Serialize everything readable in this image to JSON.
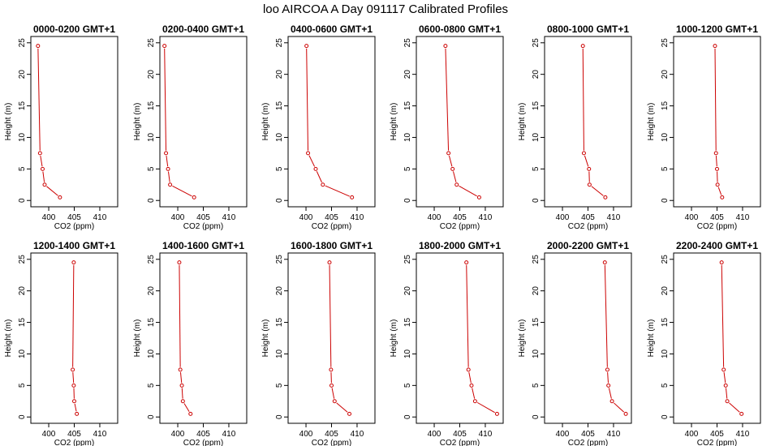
{
  "title": "loo AIRCOA A  Day 091117  Calibrated Profiles",
  "chart_data": {
    "type": "line",
    "xlabel": "CO2 (ppm)",
    "ylabel": "Height (m)",
    "xlim": [
      396.5,
      413.5
    ],
    "ylim": [
      -1,
      26
    ],
    "xticks": [
      400,
      405,
      410
    ],
    "yticks": [
      0,
      5,
      10,
      15,
      20,
      25
    ],
    "line_color": "#cc0000",
    "heights": [
      0.5,
      2.5,
      5,
      7.5,
      24.5
    ],
    "panels": [
      {
        "title": "0000-0200 GMT+1",
        "x": [
          402.2,
          399.2,
          398.8,
          398.3,
          397.9
        ]
      },
      {
        "title": "0200-0400 GMT+1",
        "x": [
          403.2,
          398.5,
          398.1,
          397.7,
          397.4
        ]
      },
      {
        "title": "0400-0600 GMT+1",
        "x": [
          409.0,
          403.3,
          401.9,
          400.4,
          400.1
        ]
      },
      {
        "title": "0600-0800 GMT+1",
        "x": [
          408.8,
          404.4,
          403.6,
          402.8,
          402.2
        ]
      },
      {
        "title": "0800-1000 GMT+1",
        "x": [
          408.4,
          405.3,
          405.2,
          404.2,
          404.0
        ]
      },
      {
        "title": "1000-1200 GMT+1",
        "x": [
          406.0,
          405.1,
          405.0,
          404.8,
          404.6
        ]
      },
      {
        "title": "1200-1400 GMT+1",
        "x": [
          405.5,
          405.0,
          404.9,
          404.7,
          404.9
        ]
      },
      {
        "title": "1400-1600 GMT+1",
        "x": [
          402.5,
          401.0,
          400.8,
          400.5,
          400.3
        ]
      },
      {
        "title": "1600-1800 GMT+1",
        "x": [
          408.5,
          405.6,
          405.0,
          404.9,
          404.6
        ]
      },
      {
        "title": "1800-2000 GMT+1",
        "x": [
          412.3,
          408.0,
          407.3,
          406.7,
          406.3
        ]
      },
      {
        "title": "2000-2200 GMT+1",
        "x": [
          412.4,
          409.7,
          409.0,
          408.8,
          408.3
        ]
      },
      {
        "title": "2200-2400 GMT+1",
        "x": [
          409.8,
          407.0,
          406.7,
          406.3,
          405.9
        ]
      }
    ]
  }
}
